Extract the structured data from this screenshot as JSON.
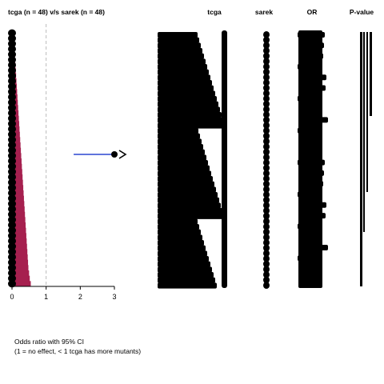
{
  "plot_title": "tcga (n = 48) v/s sarek (n = 48)",
  "columns": {
    "tcga": "tcga",
    "sarek": "sarek",
    "or": "OR",
    "pvalue": "P-value"
  },
  "footnote": {
    "line1": "Odds ratio with 95% CI",
    "line2": "(1 = no effect, < 1 tcga has more mutants)"
  },
  "colors": {
    "bar_fill": "#a6204f",
    "ci_line": "#2b47d1",
    "reference_line": "#bbbbbb",
    "point": "#000000"
  },
  "chart_data": {
    "type": "bar",
    "orientation": "horizontal",
    "x_label": "",
    "xlim": [
      0,
      3
    ],
    "x_ticks": [
      0,
      1,
      2,
      3
    ],
    "reference_x": 1,
    "grid": false,
    "legend": "none",
    "odds_ratio_bars": [
      0.04,
      0.05,
      0.06,
      0.07,
      0.08,
      0.09,
      0.1,
      0.11,
      0.12,
      0.13,
      0.14,
      0.15,
      0.16,
      0.17,
      0.18,
      0.19,
      0.2,
      0.21,
      0.22,
      0.23,
      0.24,
      0.25,
      0.26,
      0.27,
      0.28,
      0.29,
      0.3,
      0.31,
      0.32,
      0.33,
      0.34,
      0.35,
      0.36,
      0.37,
      0.38,
      0.39,
      0.4,
      0.41,
      0.42,
      0.43,
      0.44,
      0.45,
      0.46,
      0.47,
      0.48,
      0.5,
      0.52,
      0.55
    ],
    "highlight": {
      "odds_ratio": 3.0,
      "ci_low": 1.9,
      "ci_high": 3.0
    }
  }
}
